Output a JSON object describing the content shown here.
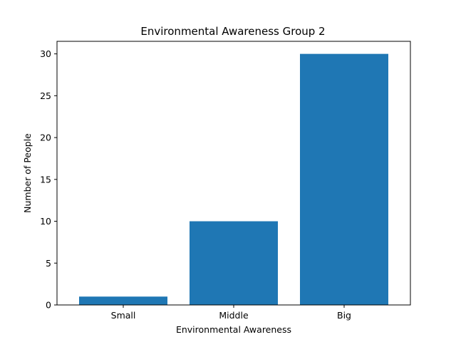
{
  "chart_data": {
    "type": "bar",
    "title": "Environmental Awareness Group 2",
    "xlabel": "Environmental Awareness",
    "ylabel": "Number of People",
    "categories": [
      "Small",
      "Middle",
      "Big"
    ],
    "values": [
      1,
      10,
      30
    ],
    "ylim": [
      0,
      31.5
    ],
    "yticks": [
      0,
      5,
      10,
      15,
      20,
      25,
      30
    ],
    "bar_color": "#1f77b4",
    "grid": false,
    "legend": "none"
  }
}
